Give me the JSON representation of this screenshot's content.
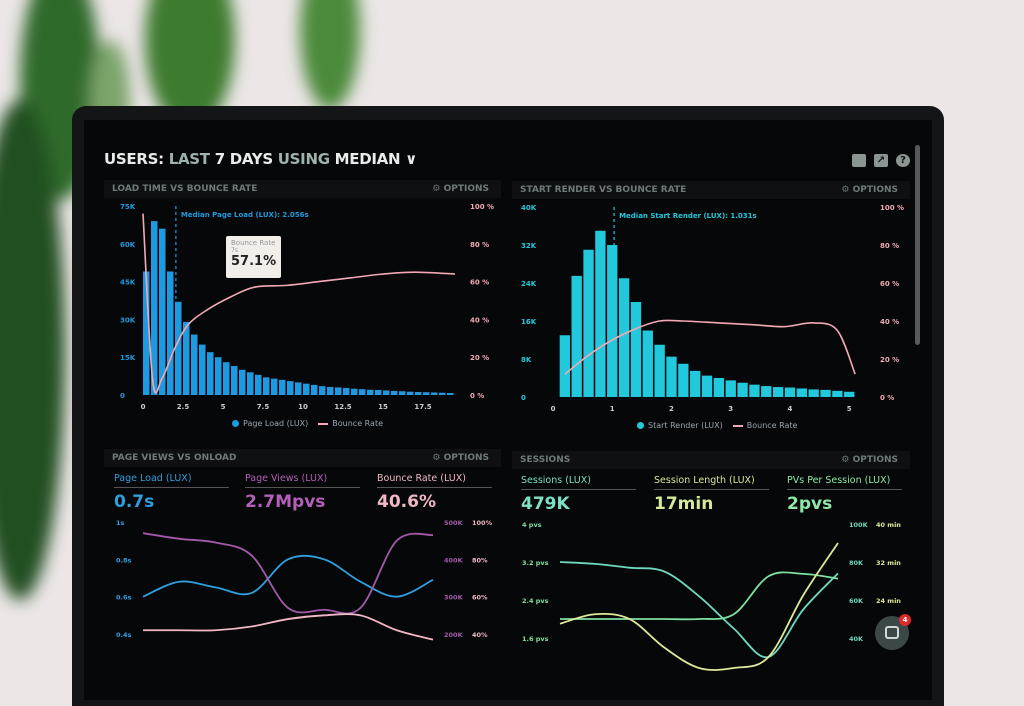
{
  "header": {
    "users": "USERS:",
    "last": "LAST",
    "days": "7 DAYS",
    "using": "USING",
    "median": "MEDIAN",
    "chevron": "∨",
    "icons": [
      "monitor-icon",
      "share-icon",
      "help-icon"
    ]
  },
  "options_label": "OPTIONS",
  "panels": {
    "load_time": {
      "title": "LOAD TIME VS BOUNCE RATE",
      "median_label": "Median Page Load (LUX): 2.056s",
      "tooltip": {
        "label": "Bounce Rate",
        "x": "7s",
        "value": "57.1%"
      },
      "legend": [
        "Page Load (LUX)",
        "Bounce Rate"
      ]
    },
    "start_render": {
      "title": "START RENDER VS BOUNCE RATE",
      "median_label": "Median Start Render (LUX): 1.031s",
      "legend": [
        "Start Render (LUX)",
        "Bounce Rate"
      ]
    },
    "page_views": {
      "title": "PAGE VIEWS VS ONLOAD",
      "kpis": [
        {
          "label": "Page Load (LUX)",
          "value": "0.7s",
          "color": "#2f9fe0"
        },
        {
          "label": "Page Views (LUX)",
          "value": "2.7Mpvs",
          "color": "#b45fb8"
        },
        {
          "label": "Bounce Rate (LUX)",
          "value": "40.6%",
          "color": "#f0b8c4"
        }
      ]
    },
    "sessions": {
      "title": "SESSIONS",
      "kpis": [
        {
          "label": "Sessions (LUX)",
          "value": "479K",
          "color": "#7fe0c8"
        },
        {
          "label": "Session Length (LUX)",
          "value": "17min",
          "color": "#d6e89a"
        },
        {
          "label": "PVs Per Session (LUX)",
          "value": "2pvs",
          "color": "#8ee8a8"
        }
      ]
    }
  },
  "chat": {
    "badge": "4"
  },
  "chart_data": [
    {
      "type": "bar",
      "title": "LOAD TIME VS BOUNCE RATE",
      "xticks": [
        "0",
        "2.5",
        "5",
        "7.5",
        "10",
        "12.5",
        "15",
        "17.5"
      ],
      "xlim": [
        0,
        20
      ],
      "yticks_left": [
        "0",
        "15K",
        "30K",
        "45K",
        "60K",
        "75K"
      ],
      "ylim_left": [
        0,
        75000
      ],
      "yticks_right": [
        "0 %",
        "20 %",
        "40 %",
        "60 %",
        "80 %",
        "100 %"
      ],
      "ylim_right": [
        0,
        100
      ],
      "median": 2.056,
      "series": [
        {
          "name": "Page Load (LUX)",
          "color": "#1e9be0",
          "x_step": 0.5,
          "values": [
            49000,
            69000,
            66000,
            49000,
            37000,
            29000,
            24000,
            20000,
            17000,
            15000,
            13000,
            11500,
            10000,
            9000,
            8000,
            7000,
            6500,
            6000,
            5500,
            5000,
            4500,
            4000,
            3500,
            3200,
            3000,
            2800,
            2500,
            2300,
            2100,
            2000,
            1800,
            1600,
            1500,
            1300,
            1200,
            1100,
            1000,
            900,
            800
          ]
        },
        {
          "name": "Bounce Rate",
          "color": "#f2a9b5",
          "points": [
            [
              0,
              96
            ],
            [
              0.6,
              8
            ],
            [
              1.2,
              9
            ],
            [
              2,
              25
            ],
            [
              2.8,
              37
            ],
            [
              4,
              45
            ],
            [
              5.5,
              52
            ],
            [
              7,
              57.1
            ],
            [
              9,
              58
            ],
            [
              11,
              60
            ],
            [
              13,
              62
            ],
            [
              15,
              64
            ],
            [
              17,
              65
            ],
            [
              19.5,
              64
            ]
          ]
        }
      ]
    },
    {
      "type": "bar",
      "title": "START RENDER VS BOUNCE RATE",
      "xticks": [
        "0",
        "1",
        "2",
        "3",
        "4",
        "5"
      ],
      "xlim": [
        0,
        5.3
      ],
      "yticks_left": [
        "0",
        "8K",
        "16K",
        "24K",
        "32K",
        "40K"
      ],
      "ylim_left": [
        0,
        40000
      ],
      "yticks_right": [
        "0 %",
        "20 %",
        "40 %",
        "60 %",
        "80 %",
        "100 %"
      ],
      "ylim_right": [
        0,
        100
      ],
      "median": 1.031,
      "series": [
        {
          "name": "Start Render (LUX)",
          "color": "#22c8dc",
          "x_start": 0.2,
          "x_step": 0.2,
          "values": [
            13000,
            25500,
            31000,
            35000,
            32000,
            25000,
            20000,
            14000,
            11000,
            8500,
            7000,
            5500,
            4500,
            4000,
            3500,
            3000,
            2600,
            2300,
            2100,
            2000,
            1800,
            1600,
            1500,
            1300,
            1100
          ]
        },
        {
          "name": "Bounce Rate",
          "color": "#f2a9b5",
          "points": [
            [
              0.2,
              12
            ],
            [
              0.6,
              22
            ],
            [
              1,
              30
            ],
            [
              1.4,
              36
            ],
            [
              1.8,
              40
            ],
            [
              2.2,
              40
            ],
            [
              2.8,
              39
            ],
            [
              3.4,
              38
            ],
            [
              3.9,
              37
            ],
            [
              4.4,
              39
            ],
            [
              4.8,
              35
            ],
            [
              5.1,
              12
            ]
          ]
        }
      ]
    },
    {
      "type": "line",
      "title": "PAGE VIEWS VS ONLOAD",
      "yticks_left": [
        "0.4s",
        "0.6s",
        "0.8s",
        "1s"
      ],
      "ylim_left": [
        0.4,
        1
      ],
      "yticks_right_a": [
        "200K",
        "300K",
        "400K",
        "500K"
      ],
      "ylim_right_a": [
        200000,
        500000
      ],
      "yticks_right_b": [
        "40%",
        "60%",
        "80%",
        "100%"
      ],
      "ylim_right_b": [
        40,
        100
      ],
      "series": [
        {
          "name": "Page Load (LUX)",
          "color": "#2f9fe0",
          "axis": "left",
          "values": [
            0.6,
            0.68,
            0.65,
            0.62,
            0.8,
            0.8,
            0.68,
            0.6,
            0.69
          ]
        },
        {
          "name": "Page Views (LUX)",
          "color": "#a25aa8",
          "axis": "right_a",
          "values": [
            470000,
            455000,
            445000,
            410000,
            270000,
            265000,
            270000,
            450000,
            465000
          ]
        },
        {
          "name": "Bounce Rate (LUX)",
          "color": "#f0b8c4",
          "axis": "right_b",
          "values": [
            42,
            42,
            42,
            44,
            48,
            50,
            50,
            42,
            37
          ]
        }
      ]
    },
    {
      "type": "line",
      "title": "SESSIONS",
      "yticks_left": [
        "1.6 pvs",
        "2.4 pvs",
        "3.2 pvs",
        "4 pvs"
      ],
      "ylim_left": [
        1.6,
        4
      ],
      "yticks_right_a": [
        "40K",
        "60K",
        "80K",
        "100K"
      ],
      "ylim_right_a": [
        40000,
        100000
      ],
      "yticks_right_b": [
        "",
        "24 min",
        "32 min",
        "40 min"
      ],
      "ylim_right_b": [
        16,
        40
      ],
      "series": [
        {
          "name": "Sessions (LUX)",
          "color": "#6fd8c0",
          "axis": "right_a",
          "values": [
            80000,
            79000,
            77000,
            75000,
            62000,
            45000,
            30000,
            55000,
            74000
          ]
        },
        {
          "name": "PVs Per Session (LUX)",
          "color": "#7fe0a0",
          "axis": "left",
          "values": [
            2.0,
            2.0,
            2.0,
            2.0,
            2.0,
            2.1,
            2.9,
            2.95,
            2.85
          ]
        },
        {
          "name": "Session Length (LUX)",
          "color": "#e0e89a",
          "axis": "right_b",
          "values": [
            19,
            21,
            20,
            14,
            8,
            5,
            12,
            25,
            36
          ]
        }
      ]
    }
  ]
}
